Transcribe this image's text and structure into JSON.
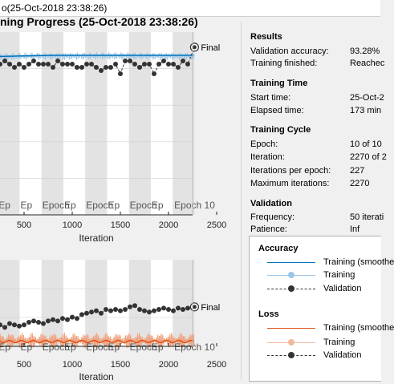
{
  "window": {
    "title": "o(25-Oct-2018 23:38:26)"
  },
  "heading": "ning Progress (25-Oct-2018 23:38:26)",
  "results": {
    "title": "Results",
    "rows": [
      {
        "label": "Validation accuracy:",
        "value": "93.28%"
      },
      {
        "label": "Training finished:",
        "value": "Reachec"
      }
    ]
  },
  "training_time": {
    "title": "Training Time",
    "rows": [
      {
        "label": "Start time:",
        "value": "25-Oct-2"
      },
      {
        "label": "Elapsed time:",
        "value": "173 min"
      }
    ]
  },
  "training_cycle": {
    "title": "Training Cycle",
    "rows": [
      {
        "label": "Epoch:",
        "value": "10 of 10"
      },
      {
        "label": "Iteration:",
        "value": "2270 of 2"
      },
      {
        "label": "Iterations per epoch:",
        "value": "227"
      },
      {
        "label": "Maximum iterations:",
        "value": "2270"
      }
    ]
  },
  "validation": {
    "title": "Validation",
    "rows": [
      {
        "label": "Frequency:",
        "value": "50 iterati"
      },
      {
        "label": "Patience:",
        "value": "Inf"
      }
    ]
  },
  "legend": {
    "accuracy_title": "Accuracy",
    "loss_title": "Loss",
    "acc_items": [
      "Training (smoothe",
      "Training",
      "Validation"
    ],
    "loss_items": [
      "Training (smoothe",
      "Training",
      "Validation"
    ]
  },
  "plots": {
    "xlabel": "Iteration",
    "final_label": "Final",
    "epoch_labels": [
      "Ep",
      "Ep",
      "Ep",
      "Epoch",
      "Ep",
      "Epoch",
      "Ep",
      "Epoch",
      "Ep",
      "Epoch 10"
    ]
  },
  "chart_data": [
    {
      "type": "line",
      "title": "Accuracy",
      "xlabel": "Iteration",
      "xlim": [
        0,
        2500
      ],
      "xticks": [
        500,
        1000,
        1500,
        2000,
        2500
      ],
      "series": [
        {
          "name": "Training (smoothed)",
          "color": "#0072bd"
        },
        {
          "name": "Validation",
          "x": [
            0,
            50,
            100,
            150,
            200,
            250,
            300,
            350,
            400,
            450,
            500,
            550,
            600,
            650,
            700,
            750,
            800,
            850,
            900,
            950,
            1000,
            1050,
            1100,
            1150,
            1200,
            1250,
            1300,
            1350,
            1400,
            1450,
            1500,
            1550,
            1600,
            1650,
            1700,
            1750,
            1800,
            1850,
            1900,
            1950,
            2000,
            2050,
            2100,
            2150,
            2200,
            2270
          ],
          "y": [
            87,
            89,
            88,
            88,
            85,
            88,
            89,
            88,
            87,
            88,
            87,
            88,
            89,
            88,
            88,
            88,
            87,
            89,
            88,
            88,
            88,
            87,
            87,
            88,
            88,
            87,
            86,
            87,
            87,
            88,
            85,
            89,
            89,
            88,
            87,
            88,
            88,
            85,
            88,
            89,
            88,
            88,
            87,
            89,
            88,
            93.28
          ]
        }
      ]
    },
    {
      "type": "line",
      "title": "Loss",
      "xlabel": "Iteration",
      "xlim": [
        0,
        2500
      ],
      "xticks": [
        500,
        1000,
        1500,
        2000,
        2500
      ],
      "series": [
        {
          "name": "Training (smoothed)",
          "color": "#d95319"
        },
        {
          "name": "Validation",
          "x": [
            0,
            50,
            100,
            150,
            200,
            250,
            300,
            350,
            400,
            450,
            500,
            550,
            600,
            650,
            700,
            750,
            800,
            850,
            900,
            950,
            1000,
            1050,
            1100,
            1150,
            1200,
            1250,
            1300,
            1350,
            1400,
            1450,
            1500,
            1550,
            1600,
            1650,
            1700,
            1750,
            1800,
            1850,
            1900,
            1950,
            2000,
            2050,
            2100,
            2150,
            2200,
            2270
          ],
          "y": [
            0.3,
            0.32,
            0.31,
            0.33,
            0.32,
            0.33,
            0.31,
            0.34,
            0.33,
            0.32,
            0.33,
            0.35,
            0.36,
            0.35,
            0.34,
            0.36,
            0.37,
            0.36,
            0.38,
            0.37,
            0.39,
            0.38,
            0.41,
            0.42,
            0.43,
            0.44,
            0.42,
            0.45,
            0.44,
            0.45,
            0.44,
            0.45,
            0.47,
            0.48,
            0.45,
            0.44,
            0.43,
            0.44,
            0.45,
            0.46,
            0.45,
            0.44,
            0.46,
            0.45,
            0.46,
            0.47
          ]
        }
      ]
    }
  ]
}
